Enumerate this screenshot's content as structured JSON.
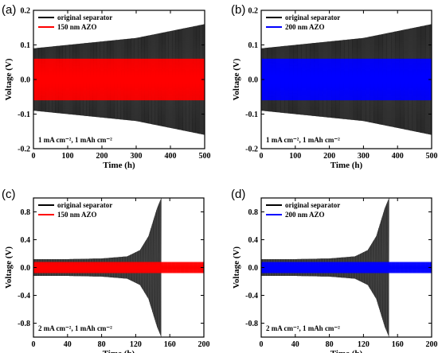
{
  "chart_data": [
    {
      "panel": "(a)",
      "type": "line",
      "xlabel": "Time (h)",
      "ylabel": "Voltage (V)",
      "xlim": [
        0,
        500
      ],
      "ylim": [
        -0.2,
        0.2
      ],
      "x_ticks": [
        0,
        100,
        200,
        300,
        400,
        500
      ],
      "y_ticks": [
        -0.2,
        -0.1,
        0.0,
        0.1,
        0.2
      ],
      "x_tick_labels": [
        "0",
        "100",
        "200",
        "300",
        "400",
        "500"
      ],
      "y_tick_labels": [
        "-0.2",
        "-0.1",
        "0.0",
        "0.1",
        "0.2"
      ],
      "annotation": "1 mA cm⁻², 1 mAh cm⁻²",
      "legend_position": "top-left",
      "series": [
        {
          "name": "original separator",
          "color": "#000000",
          "envelope": {
            "x": [
              0,
              100,
              200,
              300,
              400,
              500
            ],
            "upper": [
              0.09,
              0.1,
              0.11,
              0.12,
              0.14,
              0.16
            ],
            "lower": [
              -0.09,
              -0.1,
              -0.11,
              -0.12,
              -0.14,
              -0.16
            ]
          }
        },
        {
          "name": "150 nm AZO",
          "color": "#ff0000",
          "envelope": {
            "x": [
              0,
              100,
              200,
              300,
              400,
              500
            ],
            "upper": [
              0.06,
              0.06,
              0.06,
              0.06,
              0.06,
              0.06
            ],
            "lower": [
              -0.06,
              -0.06,
              -0.06,
              -0.06,
              -0.06,
              -0.06
            ]
          }
        }
      ]
    },
    {
      "panel": "(b)",
      "type": "line",
      "xlabel": "Time (h)",
      "ylabel": "Voltage (V)",
      "xlim": [
        0,
        500
      ],
      "ylim": [
        -0.2,
        0.2
      ],
      "x_ticks": [
        0,
        100,
        200,
        300,
        400,
        500
      ],
      "y_ticks": [
        -0.2,
        -0.1,
        0.0,
        0.1,
        0.2
      ],
      "x_tick_labels": [
        "0",
        "100",
        "200",
        "300",
        "400",
        "500"
      ],
      "y_tick_labels": [
        "-0.2",
        "-0.1",
        "0.0",
        "0.1",
        "0.2"
      ],
      "annotation": "1 mA cm⁻², 1 mAh cm⁻²",
      "legend_position": "top-left",
      "series": [
        {
          "name": "original separator",
          "color": "#000000",
          "envelope": {
            "x": [
              0,
              100,
              200,
              300,
              400,
              500
            ],
            "upper": [
              0.09,
              0.1,
              0.11,
              0.12,
              0.14,
              0.16
            ],
            "lower": [
              -0.09,
              -0.1,
              -0.11,
              -0.12,
              -0.14,
              -0.16
            ]
          }
        },
        {
          "name": "200 nm AZO",
          "color": "#0000ff",
          "envelope": {
            "x": [
              0,
              100,
              200,
              300,
              400,
              500
            ],
            "upper": [
              0.06,
              0.06,
              0.06,
              0.06,
              0.06,
              0.06
            ],
            "lower": [
              -0.06,
              -0.06,
              -0.06,
              -0.06,
              -0.06,
              -0.06
            ]
          }
        }
      ]
    },
    {
      "panel": "(c)",
      "type": "line",
      "xlabel": "Time (h)",
      "ylabel": "Voltage (V)",
      "xlim": [
        0,
        200
      ],
      "ylim": [
        -1.0,
        1.0
      ],
      "x_ticks": [
        0,
        40,
        80,
        120,
        160,
        200
      ],
      "y_ticks": [
        -0.8,
        -0.4,
        0.0,
        0.4,
        0.8
      ],
      "x_tick_labels": [
        "0",
        "40",
        "80",
        "120",
        "160",
        "200"
      ],
      "y_tick_labels": [
        "-0.8",
        "-0.4",
        "0.0",
        "0.4",
        "0.8"
      ],
      "annotation": "2 mA cm⁻², 1 mAh cm⁻²",
      "legend_position": "top-left",
      "series": [
        {
          "name": "original separator",
          "color": "#000000",
          "envelope": {
            "x": [
              0,
              40,
              80,
              110,
              125,
              135,
              145,
              150
            ],
            "upper": [
              0.12,
              0.12,
              0.13,
              0.16,
              0.25,
              0.45,
              0.85,
              1.0
            ],
            "lower": [
              -0.12,
              -0.12,
              -0.13,
              -0.16,
              -0.25,
              -0.45,
              -0.85,
              -1.0
            ]
          }
        },
        {
          "name": "150 nm AZO",
          "color": "#ff0000",
          "envelope": {
            "x": [
              0,
              40,
              80,
              120,
              160,
              200
            ],
            "upper": [
              0.08,
              0.08,
              0.08,
              0.08,
              0.08,
              0.08
            ],
            "lower": [
              -0.08,
              -0.08,
              -0.08,
              -0.08,
              -0.08,
              -0.08
            ]
          }
        }
      ]
    },
    {
      "panel": "(d)",
      "type": "line",
      "xlabel": "Time (h)",
      "ylabel": "Voltage (V)",
      "xlim": [
        0,
        200
      ],
      "ylim": [
        -1.0,
        1.0
      ],
      "x_ticks": [
        0,
        40,
        80,
        120,
        160,
        200
      ],
      "y_ticks": [
        -0.8,
        -0.4,
        0.0,
        0.4,
        0.8
      ],
      "x_tick_labels": [
        "0",
        "40",
        "80",
        "120",
        "160",
        "200"
      ],
      "y_tick_labels": [
        "-0.8",
        "-0.4",
        "0.0",
        "0.4",
        "0.8"
      ],
      "annotation": "2 mA cm⁻², 1 mAh cm⁻²",
      "legend_position": "top-left",
      "series": [
        {
          "name": "original separator",
          "color": "#000000",
          "envelope": {
            "x": [
              0,
              40,
              80,
              110,
              125,
              135,
              145,
              150
            ],
            "upper": [
              0.12,
              0.12,
              0.13,
              0.16,
              0.25,
              0.45,
              0.85,
              1.0
            ],
            "lower": [
              -0.12,
              -0.12,
              -0.13,
              -0.16,
              -0.25,
              -0.45,
              -0.85,
              -1.0
            ]
          }
        },
        {
          "name": "200 nm AZO",
          "color": "#0000ff",
          "envelope": {
            "x": [
              0,
              40,
              80,
              120,
              160,
              200
            ],
            "upper": [
              0.08,
              0.08,
              0.08,
              0.08,
              0.08,
              0.08
            ],
            "lower": [
              -0.08,
              -0.08,
              -0.08,
              -0.08,
              -0.08,
              -0.08
            ]
          }
        }
      ]
    }
  ]
}
